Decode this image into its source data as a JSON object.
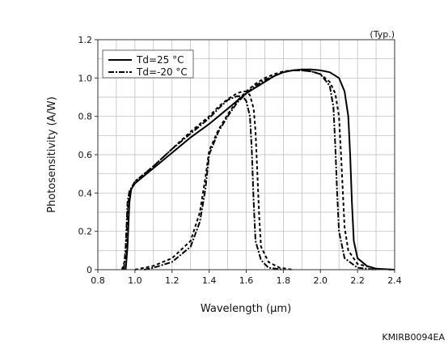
{
  "chart_data": {
    "type": "line",
    "corner_note": "(Typ.)",
    "figure_code": "KMIRB0094EA",
    "xlabel": "Wavelength (µm)",
    "ylabel": "Photosensitivity (A/W)",
    "xlim": [
      0.8,
      2.4
    ],
    "ylim": [
      0,
      1.2
    ],
    "xticks": [
      {
        "value": 0.8,
        "label": "0.8"
      },
      {
        "value": 1.0,
        "label": "1.0"
      },
      {
        "value": 1.2,
        "label": "1.2"
      },
      {
        "value": 1.4,
        "label": "1.4"
      },
      {
        "value": 1.6,
        "label": "1.6"
      },
      {
        "value": 1.8,
        "label": "1.8"
      },
      {
        "value": 2.0,
        "label": "2.0"
      },
      {
        "value": 2.2,
        "label": "2.2"
      },
      {
        "value": 2.4,
        "label": "2.4"
      }
    ],
    "yticks": [
      {
        "value": 0,
        "label": "0"
      },
      {
        "value": 0.2,
        "label": "0.2"
      },
      {
        "value": 0.4,
        "label": "0.4"
      },
      {
        "value": 0.6,
        "label": "0.6"
      },
      {
        "value": 0.8,
        "label": "0.8"
      },
      {
        "value": 1.0,
        "label": "1.0"
      },
      {
        "value": 1.2,
        "label": "1.2"
      }
    ],
    "grid": true,
    "legend_position": "top-left",
    "legend": [
      {
        "label": "Td=25 °C",
        "style": "solid"
      },
      {
        "label": "Td=-20 °C",
        "style": "dash-dot"
      }
    ],
    "series": [
      {
        "name": "Td=25 °C",
        "style": "solid",
        "points": [
          [
            0.95,
            0.0
          ],
          [
            0.96,
            0.12
          ],
          [
            0.97,
            0.35
          ],
          [
            0.98,
            0.42
          ],
          [
            1.0,
            0.45
          ],
          [
            1.05,
            0.49
          ],
          [
            1.1,
            0.53
          ],
          [
            1.2,
            0.61
          ],
          [
            1.3,
            0.69
          ],
          [
            1.4,
            0.76
          ],
          [
            1.45,
            0.8
          ],
          [
            1.5,
            0.84
          ],
          [
            1.55,
            0.88
          ],
          [
            1.6,
            0.92
          ],
          [
            1.65,
            0.95
          ],
          [
            1.7,
            0.98
          ],
          [
            1.75,
            1.01
          ],
          [
            1.8,
            1.03
          ],
          [
            1.85,
            1.04
          ],
          [
            1.9,
            1.045
          ],
          [
            1.95,
            1.045
          ],
          [
            2.0,
            1.04
          ],
          [
            2.05,
            1.03
          ],
          [
            2.1,
            1.0
          ],
          [
            2.13,
            0.93
          ],
          [
            2.15,
            0.8
          ],
          [
            2.16,
            0.6
          ],
          [
            2.17,
            0.35
          ],
          [
            2.18,
            0.15
          ],
          [
            2.2,
            0.06
          ],
          [
            2.25,
            0.02
          ],
          [
            2.3,
            0.005
          ],
          [
            2.4,
            0.0
          ]
        ]
      },
      {
        "name": "Td=-20 °C",
        "style": "dash-dot",
        "points": [
          [
            0.94,
            0.0
          ],
          [
            0.95,
            0.12
          ],
          [
            0.96,
            0.35
          ],
          [
            0.97,
            0.41
          ],
          [
            1.0,
            0.46
          ],
          [
            1.05,
            0.5
          ],
          [
            1.1,
            0.54
          ],
          [
            1.2,
            0.63
          ],
          [
            1.3,
            0.71
          ],
          [
            1.4,
            0.79
          ],
          [
            1.45,
            0.84
          ],
          [
            1.5,
            0.885
          ],
          [
            1.55,
            0.905
          ],
          [
            1.58,
            0.905
          ],
          [
            1.6,
            0.88
          ],
          [
            1.62,
            0.8
          ],
          [
            1.63,
            0.62
          ],
          [
            1.64,
            0.35
          ],
          [
            1.65,
            0.15
          ],
          [
            1.68,
            0.05
          ],
          [
            1.72,
            0.01
          ],
          [
            1.8,
            0.0
          ]
        ]
      },
      {
        "name": "",
        "style": "dashed",
        "points": [
          [
            0.93,
            0.0
          ],
          [
            0.95,
            0.06
          ],
          [
            0.96,
            0.3
          ],
          [
            0.97,
            0.4
          ],
          [
            1.0,
            0.46
          ],
          [
            1.05,
            0.5
          ],
          [
            1.1,
            0.54
          ],
          [
            1.2,
            0.63
          ],
          [
            1.3,
            0.72
          ],
          [
            1.4,
            0.8
          ],
          [
            1.45,
            0.85
          ],
          [
            1.5,
            0.89
          ],
          [
            1.55,
            0.92
          ],
          [
            1.58,
            0.93
          ],
          [
            1.6,
            0.93
          ],
          [
            1.62,
            0.91
          ],
          [
            1.64,
            0.84
          ],
          [
            1.65,
            0.72
          ],
          [
            1.66,
            0.5
          ],
          [
            1.67,
            0.27
          ],
          [
            1.68,
            0.12
          ],
          [
            1.72,
            0.04
          ],
          [
            1.78,
            0.01
          ],
          [
            1.85,
            0.0
          ]
        ]
      },
      {
        "name": "",
        "style": "dashed",
        "points": [
          [
            1.0,
            0.0
          ],
          [
            1.1,
            0.02
          ],
          [
            1.2,
            0.06
          ],
          [
            1.3,
            0.15
          ],
          [
            1.35,
            0.3
          ],
          [
            1.38,
            0.48
          ],
          [
            1.4,
            0.62
          ],
          [
            1.45,
            0.73
          ],
          [
            1.5,
            0.81
          ],
          [
            1.55,
            0.88
          ],
          [
            1.6,
            0.93
          ],
          [
            1.65,
            0.97
          ],
          [
            1.7,
            1.0
          ],
          [
            1.75,
            1.02
          ],
          [
            1.8,
            1.035
          ],
          [
            1.85,
            1.04
          ],
          [
            1.9,
            1.04
          ],
          [
            1.95,
            1.035
          ],
          [
            2.0,
            1.02
          ],
          [
            2.05,
            0.98
          ],
          [
            2.08,
            0.92
          ],
          [
            2.1,
            0.8
          ],
          [
            2.11,
            0.62
          ],
          [
            2.12,
            0.42
          ],
          [
            2.13,
            0.22
          ],
          [
            2.15,
            0.1
          ],
          [
            2.2,
            0.03
          ],
          [
            2.3,
            0.005
          ],
          [
            2.38,
            0.0
          ]
        ]
      },
      {
        "name": "",
        "style": "dash-dot",
        "points": [
          [
            1.05,
            0.0
          ],
          [
            1.1,
            0.01
          ],
          [
            1.2,
            0.04
          ],
          [
            1.3,
            0.12
          ],
          [
            1.35,
            0.25
          ],
          [
            1.38,
            0.42
          ],
          [
            1.4,
            0.6
          ],
          [
            1.45,
            0.72
          ],
          [
            1.5,
            0.8
          ],
          [
            1.55,
            0.87
          ],
          [
            1.6,
            0.92
          ],
          [
            1.65,
            0.96
          ],
          [
            1.7,
            0.99
          ],
          [
            1.75,
            1.01
          ],
          [
            1.8,
            1.03
          ],
          [
            1.85,
            1.04
          ],
          [
            1.9,
            1.04
          ],
          [
            1.95,
            1.035
          ],
          [
            2.0,
            1.02
          ],
          [
            2.05,
            0.96
          ],
          [
            2.07,
            0.85
          ],
          [
            2.08,
            0.65
          ],
          [
            2.09,
            0.4
          ],
          [
            2.1,
            0.2
          ],
          [
            2.13,
            0.06
          ],
          [
            2.2,
            0.01
          ],
          [
            2.3,
            0.0
          ]
        ]
      }
    ]
  }
}
